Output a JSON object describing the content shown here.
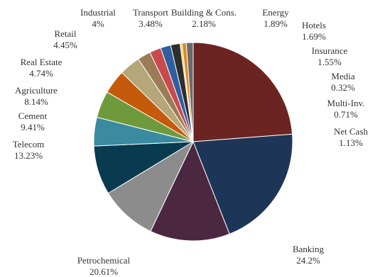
{
  "chart_data": {
    "type": "pie",
    "title": "",
    "start_angle_deg": 90,
    "direction": "clockwise",
    "slices": [
      {
        "name": "Banking",
        "value": 24.2,
        "display": "24.2%",
        "color": "#6b2422"
      },
      {
        "name": "Petrochemical",
        "value": 20.61,
        "display": "20.61%",
        "color": "#1d3557"
      },
      {
        "name": "Telecom",
        "value": 13.23,
        "display": "13.23%",
        "color": "#4c2840"
      },
      {
        "name": "Cement",
        "value": 9.41,
        "display": "9.41%",
        "color": "#8c8c8c"
      },
      {
        "name": "Agriculture",
        "value": 8.14,
        "display": "8.14%",
        "color": "#0a3a4f"
      },
      {
        "name": "Real Estate",
        "value": 4.74,
        "display": "4.74%",
        "color": "#3a8aa0"
      },
      {
        "name": "Retail",
        "value": 4.45,
        "display": "4.45%",
        "color": "#6e9a3c"
      },
      {
        "name": "Industrial",
        "value": 4.0,
        "display": "4%",
        "color": "#c55a0a"
      },
      {
        "name": "Transport",
        "value": 3.48,
        "display": "3.48%",
        "color": "#b5a77a"
      },
      {
        "name": "Building & Cons.",
        "value": 2.18,
        "display": "2.18%",
        "color": "#9c7b56"
      },
      {
        "name": "Energy",
        "value": 1.89,
        "display": "1.89%",
        "color": "#c84a4a"
      },
      {
        "name": "Hotels",
        "value": 1.69,
        "display": "1.69%",
        "color": "#2f5fa0"
      },
      {
        "name": "Insurance",
        "value": 1.55,
        "display": "1.55%",
        "color": "#2e2e2e"
      },
      {
        "name": "Media",
        "value": 0.32,
        "display": "0.32%",
        "color": "#e8d24a"
      },
      {
        "name": "Multi-Inv.",
        "value": 0.71,
        "display": "0.71%",
        "color": "#d98a2a"
      },
      {
        "name": "Net Cash",
        "value": 1.13,
        "display": "1.13%",
        "color": "#6a6a6a"
      }
    ]
  }
}
